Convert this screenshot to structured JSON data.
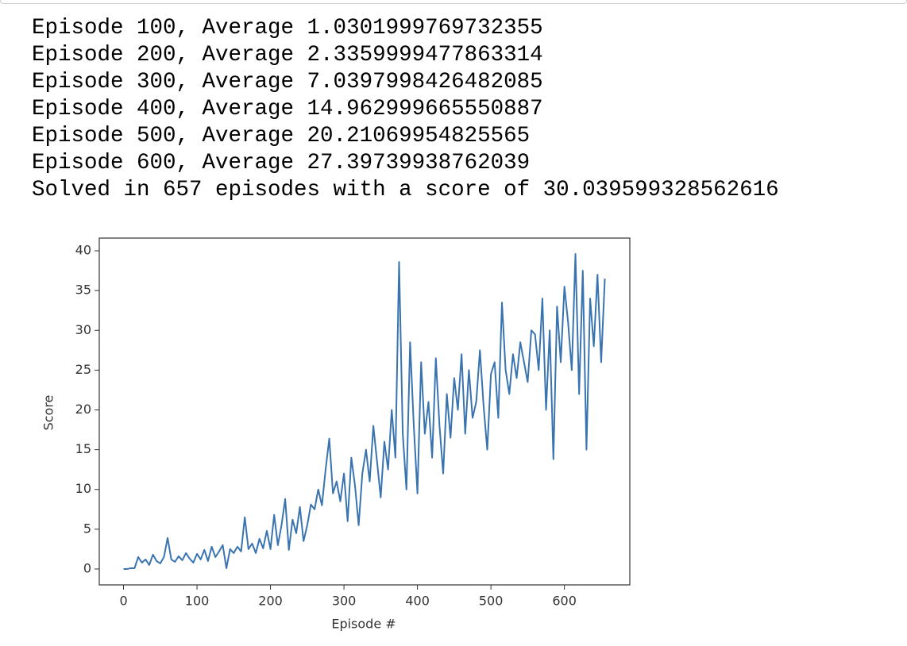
{
  "log": {
    "lines": [
      "Episode 100, Average 1.0301999769732355",
      "Episode 200, Average 2.3359999477863314",
      "Episode 300, Average 7.0397998426482085",
      "Episode 400, Average 14.962999665550887",
      "Episode 500, Average 20.21069954825565",
      "Episode 600, Average 27.39739938762039",
      "Solved in 657 episodes with a score of 30.039599328562616"
    ]
  },
  "chart_data": {
    "type": "line",
    "xlabel": "Episode #",
    "ylabel": "Score",
    "color": "#3a74b0",
    "xlim": [
      -33,
      689
    ],
    "ylim": [
      -2.0,
      41.6
    ],
    "xticks": [
      0,
      100,
      200,
      300,
      400,
      500,
      600
    ],
    "yticks": [
      0,
      5,
      10,
      15,
      20,
      25,
      30,
      35,
      40
    ],
    "grid": false,
    "x": [
      0,
      5,
      10,
      15,
      20,
      25,
      30,
      35,
      40,
      45,
      50,
      55,
      60,
      65,
      70,
      75,
      80,
      85,
      90,
      95,
      100,
      105,
      110,
      115,
      120,
      125,
      130,
      135,
      140,
      145,
      150,
      155,
      160,
      165,
      170,
      175,
      180,
      185,
      190,
      195,
      200,
      205,
      210,
      215,
      220,
      225,
      230,
      235,
      240,
      245,
      250,
      255,
      260,
      265,
      270,
      275,
      280,
      285,
      290,
      295,
      300,
      305,
      310,
      315,
      320,
      325,
      330,
      335,
      340,
      345,
      350,
      355,
      360,
      365,
      370,
      375,
      380,
      385,
      390,
      395,
      400,
      405,
      410,
      415,
      420,
      425,
      430,
      435,
      440,
      445,
      450,
      455,
      460,
      465,
      470,
      475,
      480,
      485,
      490,
      495,
      500,
      505,
      510,
      515,
      520,
      525,
      530,
      535,
      540,
      545,
      550,
      555,
      560,
      565,
      570,
      575,
      580,
      585,
      590,
      595,
      600,
      605,
      610,
      615,
      620,
      625,
      630,
      635,
      640,
      645,
      650,
      655
    ],
    "values": [
      0.0,
      0.0,
      0.1,
      0.1,
      1.5,
      0.8,
      1.2,
      0.5,
      1.8,
      1.0,
      0.7,
      1.5,
      3.9,
      1.2,
      0.9,
      1.6,
      1.1,
      2.0,
      1.3,
      0.8,
      1.9,
      1.2,
      2.4,
      1.0,
      2.8,
      1.5,
      2.2,
      3.0,
      0.1,
      2.5,
      2.0,
      2.8,
      2.2,
      6.5,
      2.5,
      3.2,
      2.0,
      3.8,
      2.6,
      4.8,
      2.5,
      6.8,
      3.0,
      5.5,
      8.8,
      2.4,
      6.2,
      4.5,
      7.8,
      3.5,
      5.5,
      8.1,
      7.5,
      10.0,
      8.0,
      12.5,
      16.4,
      9.5,
      11.0,
      8.5,
      12.0,
      6.0,
      14.0,
      10.5,
      5.5,
      12.0,
      15.0,
      11.0,
      18.0,
      13.5,
      9.0,
      16.0,
      12.5,
      20.0,
      14.0,
      38.6,
      17.0,
      10.0,
      28.5,
      18.0,
      9.5,
      26.0,
      17.0,
      21.0,
      14.0,
      26.5,
      18.0,
      12.0,
      22.0,
      16.5,
      24.0,
      20.0,
      27.0,
      17.0,
      25.0,
      19.0,
      21.0,
      27.5,
      20.5,
      15.0,
      24.5,
      26.0,
      19.0,
      33.5,
      25.0,
      22.0,
      27.0,
      24.0,
      28.5,
      26.0,
      23.5,
      30.0,
      29.5,
      25.0,
      34.0,
      20.0,
      30.0,
      13.8,
      33.0,
      26.0,
      35.5,
      31.0,
      25.0,
      39.6,
      22.0,
      37.5,
      15.0,
      34.0,
      28.0,
      37.0,
      26.0,
      36.5
    ]
  }
}
